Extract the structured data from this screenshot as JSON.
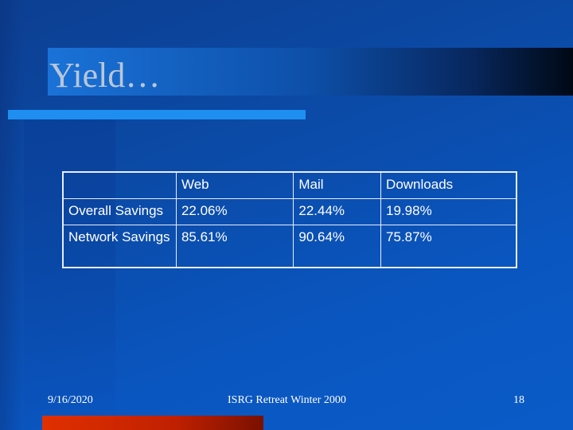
{
  "slide": {
    "title": "Yield…"
  },
  "table": {
    "headers": [
      "",
      "Web",
      "Mail",
      "Downloads"
    ],
    "rows": [
      {
        "label": "Overall Savings",
        "values": [
          "22.06%",
          "22.44%",
          "19.98%"
        ]
      },
      {
        "label": "Network Savings",
        "values": [
          "85.61%",
          "90.64%",
          "75.87%"
        ]
      }
    ]
  },
  "footer": {
    "date": "9/16/2020",
    "center": "ISRG Retreat Winter 2000",
    "page": "18"
  },
  "colors": {
    "background": "#0b4aa6",
    "title_text": "#b9c7d8",
    "accent_line": "#1e8ff0",
    "bottom_accent": "#e03000"
  }
}
